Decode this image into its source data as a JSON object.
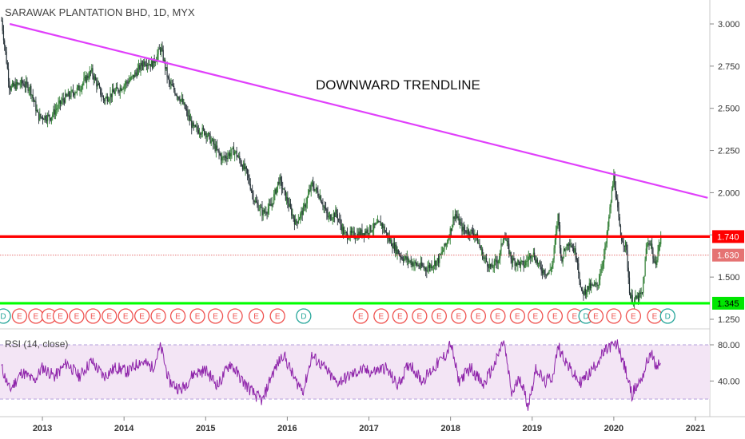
{
  "header": {
    "title": "SARAWAK PLANTATION BHD, 1D, MYX"
  },
  "chart_data": {
    "type": "candlestick",
    "title": "SARAWAK PLANTATION BHD, 1D, MYX",
    "annotation": "DOWNWARD TRENDLINE",
    "x_ticks": [
      "2013",
      "2014",
      "2015",
      "2016",
      "2017",
      "2018",
      "2019",
      "2020",
      "2021"
    ],
    "y_ticks": [
      "3.000",
      "2.750",
      "2.500",
      "2.250",
      "2.000",
      "1.750",
      "1.500",
      "1.250"
    ],
    "ylim": [
      1.2,
      3.05
    ],
    "price_path": [
      [
        2012.5,
        3.02
      ],
      [
        2012.6,
        2.62
      ],
      [
        2012.75,
        2.65
      ],
      [
        2012.85,
        2.62
      ],
      [
        2012.95,
        2.45
      ],
      [
        2013.1,
        2.45
      ],
      [
        2013.25,
        2.55
      ],
      [
        2013.45,
        2.62
      ],
      [
        2013.6,
        2.72
      ],
      [
        2013.75,
        2.55
      ],
      [
        2013.95,
        2.62
      ],
      [
        2014.1,
        2.68
      ],
      [
        2014.25,
        2.78
      ],
      [
        2014.35,
        2.76
      ],
      [
        2014.45,
        2.86
      ],
      [
        2014.55,
        2.65
      ],
      [
        2014.7,
        2.55
      ],
      [
        2014.85,
        2.38
      ],
      [
        2015.0,
        2.36
      ],
      [
        2015.1,
        2.28
      ],
      [
        2015.2,
        2.2
      ],
      [
        2015.35,
        2.25
      ],
      [
        2015.5,
        2.12
      ],
      [
        2015.6,
        1.95
      ],
      [
        2015.7,
        1.88
      ],
      [
        2015.8,
        1.92
      ],
      [
        2015.9,
        2.08
      ],
      [
        2016.0,
        1.95
      ],
      [
        2016.1,
        1.82
      ],
      [
        2016.2,
        1.9
      ],
      [
        2016.3,
        2.05
      ],
      [
        2016.4,
        1.98
      ],
      [
        2016.5,
        1.85
      ],
      [
        2016.6,
        1.88
      ],
      [
        2016.7,
        1.75
      ],
      [
        2016.85,
        1.75
      ],
      [
        2017.0,
        1.78
      ],
      [
        2017.15,
        1.82
      ],
      [
        2017.25,
        1.72
      ],
      [
        2017.4,
        1.62
      ],
      [
        2017.55,
        1.58
      ],
      [
        2017.7,
        1.55
      ],
      [
        2017.85,
        1.6
      ],
      [
        2017.95,
        1.7
      ],
      [
        2018.0,
        1.78
      ],
      [
        2018.05,
        1.88
      ],
      [
        2018.15,
        1.78
      ],
      [
        2018.3,
        1.76
      ],
      [
        2018.4,
        1.62
      ],
      [
        2018.5,
        1.55
      ],
      [
        2018.6,
        1.62
      ],
      [
        2018.65,
        1.76
      ],
      [
        2018.75,
        1.6
      ],
      [
        2018.9,
        1.57
      ],
      [
        2019.0,
        1.65
      ],
      [
        2019.1,
        1.55
      ],
      [
        2019.2,
        1.52
      ],
      [
        2019.25,
        1.58
      ],
      [
        2019.32,
        1.88
      ],
      [
        2019.35,
        1.6
      ],
      [
        2019.45,
        1.72
      ],
      [
        2019.55,
        1.62
      ],
      [
        2019.6,
        1.4
      ],
      [
        2019.7,
        1.44
      ],
      [
        2019.8,
        1.45
      ],
      [
        2019.9,
        1.68
      ],
      [
        2020.0,
        2.1
      ],
      [
        2020.08,
        1.75
      ],
      [
        2020.15,
        1.68
      ],
      [
        2020.2,
        1.38
      ],
      [
        2020.25,
        1.36
      ],
      [
        2020.35,
        1.4
      ],
      [
        2020.4,
        1.68
      ],
      [
        2020.45,
        1.72
      ],
      [
        2020.5,
        1.56
      ],
      [
        2020.58,
        1.74
      ]
    ],
    "rsi": {
      "label": "RSI (14, close)",
      "levels": [
        "80.00",
        "40.00"
      ],
      "upper_band": 80,
      "lower_band": 20,
      "path": [
        [
          2012.5,
          55
        ],
        [
          2012.6,
          30
        ],
        [
          2012.75,
          50
        ],
        [
          2012.9,
          40
        ],
        [
          2013.0,
          55
        ],
        [
          2013.15,
          45
        ],
        [
          2013.3,
          60
        ],
        [
          2013.45,
          45
        ],
        [
          2013.6,
          62
        ],
        [
          2013.75,
          45
        ],
        [
          2013.9,
          55
        ],
        [
          2014.05,
          50
        ],
        [
          2014.2,
          62
        ],
        [
          2014.35,
          55
        ],
        [
          2014.45,
          78
        ],
        [
          2014.55,
          40
        ],
        [
          2014.7,
          30
        ],
        [
          2014.85,
          48
        ],
        [
          2015.0,
          52
        ],
        [
          2015.15,
          35
        ],
        [
          2015.3,
          60
        ],
        [
          2015.45,
          40
        ],
        [
          2015.6,
          25
        ],
        [
          2015.7,
          18
        ],
        [
          2015.8,
          45
        ],
        [
          2015.95,
          70
        ],
        [
          2016.1,
          40
        ],
        [
          2016.2,
          30
        ],
        [
          2016.3,
          68
        ],
        [
          2016.45,
          55
        ],
        [
          2016.6,
          38
        ],
        [
          2016.75,
          45
        ],
        [
          2016.9,
          52
        ],
        [
          2017.05,
          50
        ],
        [
          2017.2,
          55
        ],
        [
          2017.35,
          35
        ],
        [
          2017.5,
          60
        ],
        [
          2017.65,
          40
        ],
        [
          2017.8,
          55
        ],
        [
          2017.95,
          70
        ],
        [
          2018.0,
          82
        ],
        [
          2018.1,
          40
        ],
        [
          2018.25,
          55
        ],
        [
          2018.4,
          35
        ],
        [
          2018.55,
          60
        ],
        [
          2018.65,
          85
        ],
        [
          2018.75,
          25
        ],
        [
          2018.85,
          45
        ],
        [
          2018.95,
          12
        ],
        [
          2019.05,
          55
        ],
        [
          2019.15,
          38
        ],
        [
          2019.25,
          45
        ],
        [
          2019.32,
          78
        ],
        [
          2019.45,
          55
        ],
        [
          2019.58,
          38
        ],
        [
          2019.7,
          48
        ],
        [
          2019.85,
          68
        ],
        [
          2019.95,
          78
        ],
        [
          2020.05,
          80
        ],
        [
          2020.15,
          50
        ],
        [
          2020.22,
          25
        ],
        [
          2020.35,
          45
        ],
        [
          2020.45,
          72
        ],
        [
          2020.52,
          55
        ],
        [
          2020.58,
          62
        ]
      ]
    },
    "levels": [
      {
        "value": 1.74,
        "label": "1.740",
        "color": "#ff0000",
        "style": "solid"
      },
      {
        "value": 1.63,
        "label": "1.630",
        "color": "#e57373",
        "style": "dotted"
      },
      {
        "value": 1.345,
        "label": "1.345",
        "color": "#00ff00",
        "style": "solid"
      }
    ],
    "trendline": {
      "from": [
        2012.6,
        3.0
      ],
      "to": [
        2021.15,
        1.97
      ],
      "color": "#e040fb"
    },
    "events": [
      {
        "x": 2012.52,
        "label": "D",
        "color": "#26a69a"
      },
      {
        "x": 2012.72,
        "label": "E",
        "color": "#ef5350"
      },
      {
        "x": 2012.92,
        "label": "E",
        "color": "#ef5350"
      },
      {
        "x": 2013.08,
        "label": "E",
        "color": "#ef5350"
      },
      {
        "x": 2013.22,
        "label": "E",
        "color": "#ef5350"
      },
      {
        "x": 2013.42,
        "label": "E",
        "color": "#ef5350"
      },
      {
        "x": 2013.62,
        "label": "E",
        "color": "#ef5350"
      },
      {
        "x": 2013.82,
        "label": "E",
        "color": "#ef5350"
      },
      {
        "x": 2014.02,
        "label": "E",
        "color": "#ef5350"
      },
      {
        "x": 2014.22,
        "label": "E",
        "color": "#ef5350"
      },
      {
        "x": 2014.42,
        "label": "E",
        "color": "#ef5350"
      },
      {
        "x": 2014.66,
        "label": "E",
        "color": "#ef5350"
      },
      {
        "x": 2014.9,
        "label": "E",
        "color": "#ef5350"
      },
      {
        "x": 2015.12,
        "label": "E",
        "color": "#ef5350"
      },
      {
        "x": 2015.36,
        "label": "E",
        "color": "#ef5350"
      },
      {
        "x": 2015.62,
        "label": "E",
        "color": "#ef5350"
      },
      {
        "x": 2015.88,
        "label": "E",
        "color": "#ef5350"
      },
      {
        "x": 2016.2,
        "label": "D",
        "color": "#26a69a"
      },
      {
        "x": 2016.9,
        "label": "E",
        "color": "#ef5350"
      },
      {
        "x": 2017.15,
        "label": "E",
        "color": "#ef5350"
      },
      {
        "x": 2017.38,
        "label": "E",
        "color": "#ef5350"
      },
      {
        "x": 2017.62,
        "label": "E",
        "color": "#ef5350"
      },
      {
        "x": 2017.86,
        "label": "E",
        "color": "#ef5350"
      },
      {
        "x": 2018.1,
        "label": "E",
        "color": "#ef5350"
      },
      {
        "x": 2018.34,
        "label": "E",
        "color": "#ef5350"
      },
      {
        "x": 2018.58,
        "label": "E",
        "color": "#ef5350"
      },
      {
        "x": 2018.82,
        "label": "E",
        "color": "#ef5350"
      },
      {
        "x": 2019.04,
        "label": "E",
        "color": "#ef5350"
      },
      {
        "x": 2019.28,
        "label": "E",
        "color": "#ef5350"
      },
      {
        "x": 2019.52,
        "label": "E",
        "color": "#ef5350"
      },
      {
        "x": 2019.66,
        "label": "D",
        "color": "#26a69a"
      },
      {
        "x": 2019.78,
        "label": "E",
        "color": "#ef5350"
      },
      {
        "x": 2020.0,
        "label": "E",
        "color": "#ef5350"
      },
      {
        "x": 2020.24,
        "label": "E",
        "color": "#ef5350"
      },
      {
        "x": 2020.5,
        "label": "E",
        "color": "#ef5350"
      },
      {
        "x": 2020.66,
        "label": "D",
        "color": "#26a69a"
      }
    ]
  }
}
